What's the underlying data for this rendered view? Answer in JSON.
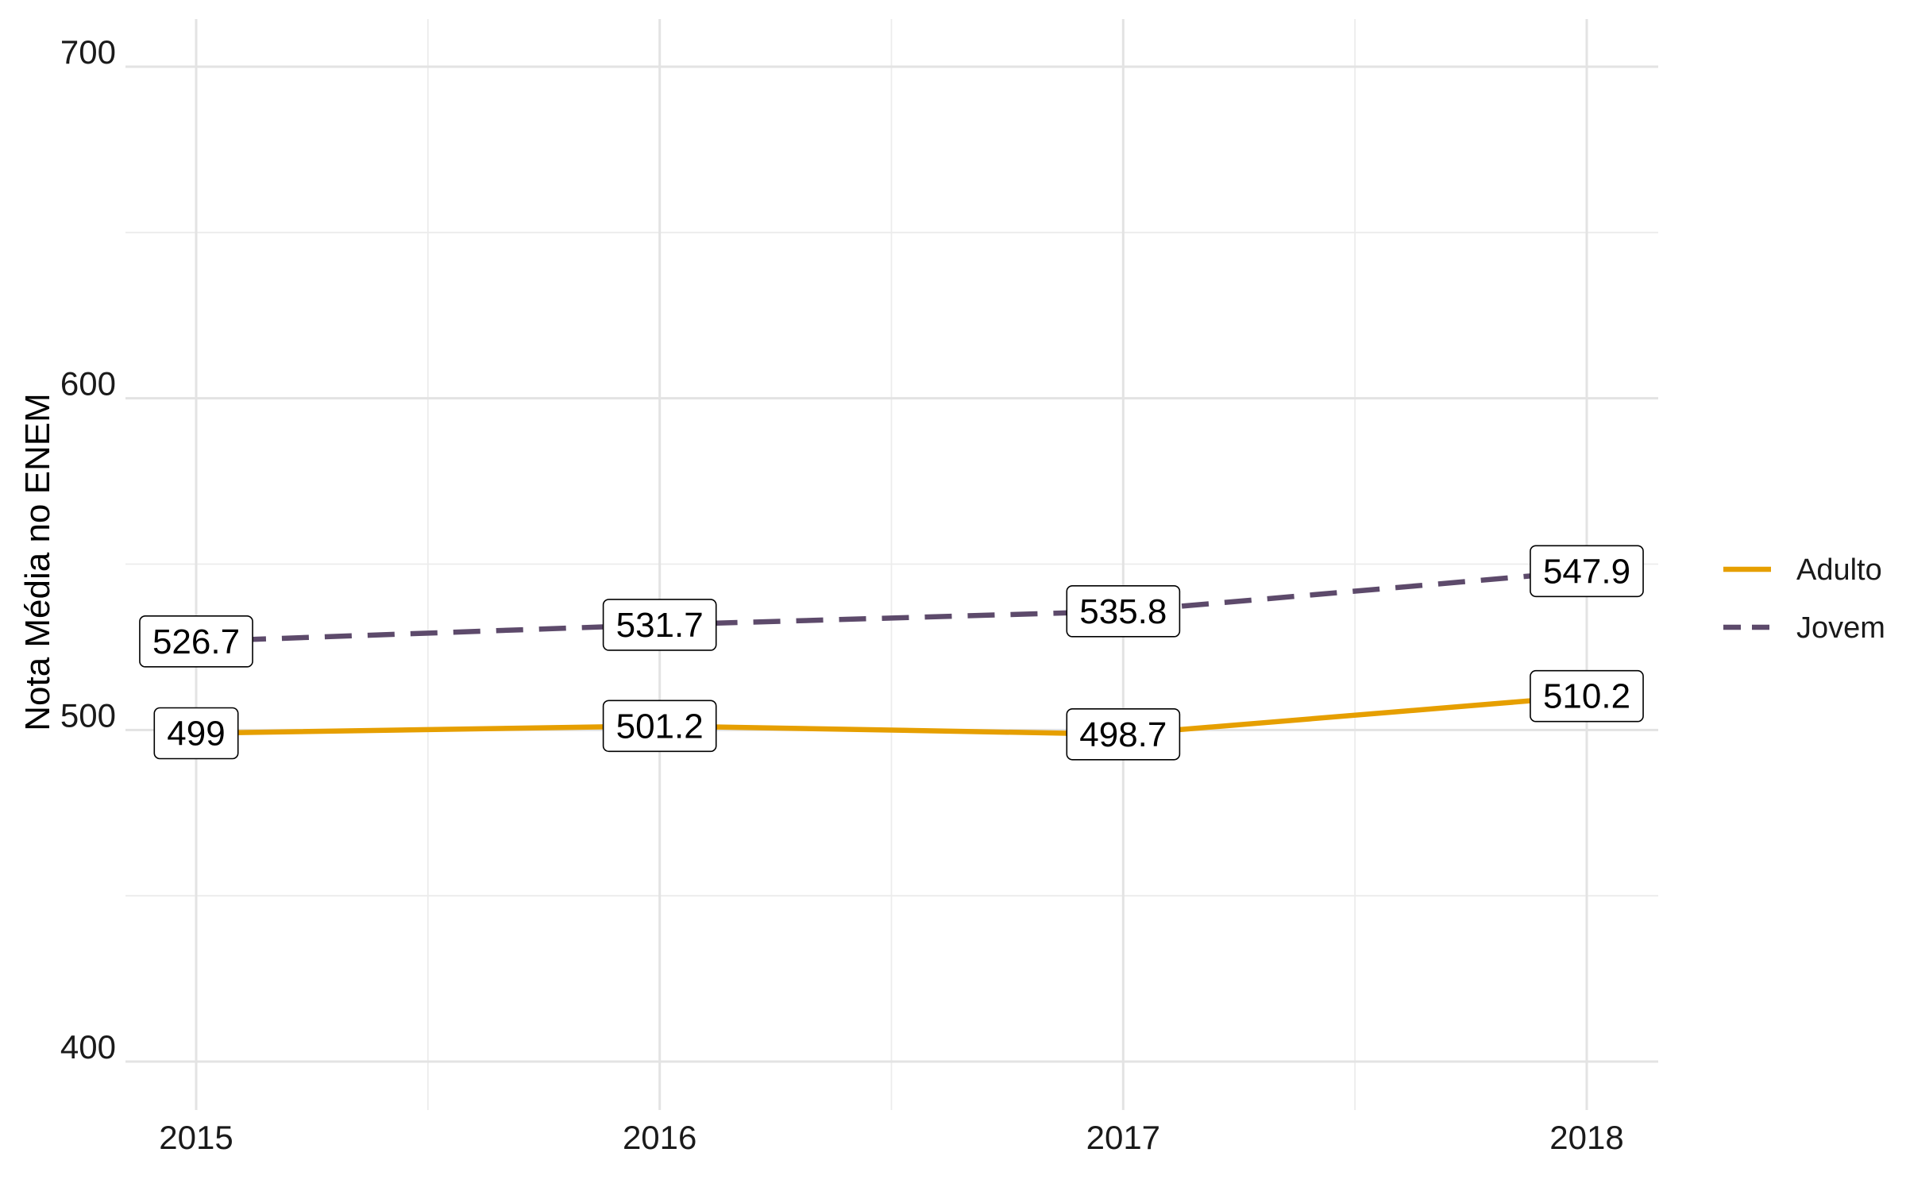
{
  "chart_data": {
    "type": "line",
    "title": "",
    "xlabel": "",
    "ylabel": "Nota Média no ENEM",
    "x": [
      "2015",
      "2016",
      "2017",
      "2018"
    ],
    "ylim": [
      400,
      700
    ],
    "yticks": [
      "400",
      "500",
      "600",
      "700"
    ],
    "grid": true,
    "legend_position": "right",
    "series": [
      {
        "name": "Adulto",
        "values": [
          499,
          501.2,
          498.7,
          510.2
        ],
        "labels": [
          "499",
          "501.2",
          "498.7",
          "510.2"
        ],
        "color": "#E69F00",
        "dash": "solid"
      },
      {
        "name": "Jovem",
        "values": [
          526.7,
          531.7,
          535.8,
          547.9
        ],
        "labels": [
          "526.7",
          "531.7",
          "535.8",
          "547.9"
        ],
        "color": "#5D4A6B",
        "dash": "dashed"
      }
    ]
  }
}
